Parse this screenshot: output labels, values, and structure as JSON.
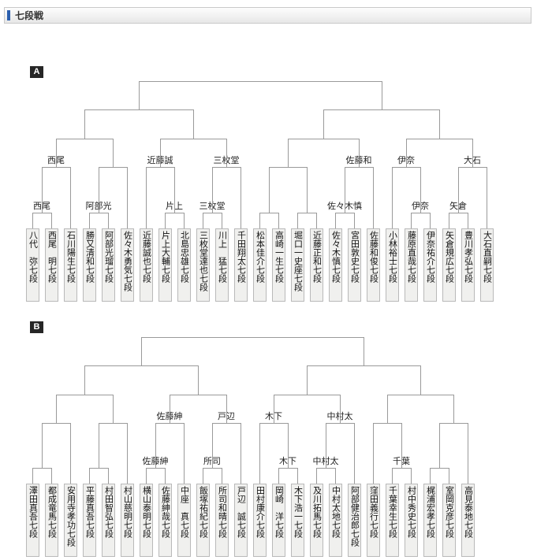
{
  "header": {
    "title": "七段戦"
  },
  "colors": {
    "accent": "#2b5fae",
    "line": "#9a9a9a",
    "box_bg": "#f0f0ee",
    "marker_bg": "#262626"
  },
  "sections": [
    {
      "marker": "A",
      "players": [
        "八代　弥七段",
        "西尾　明七段",
        "石川陽生七段",
        "勝又清和七段",
        "阿部光瑠七段",
        "佐々木勇気七段",
        "近藤誠也七段",
        "片上大輔七段",
        "北島忠雄七段",
        "三枚堂達也七段",
        "川上　猛七段",
        "千田翔太七段",
        "松本佳介七段",
        "高崎一生七段",
        "堀口一史座七段",
        "近藤正和七段",
        "佐々木慎七段",
        "宮田敦史七段",
        "佐藤和俊七段",
        "小林裕士七段",
        "藤原直哉七段",
        "伊奈祐介七段",
        "矢倉規広七段",
        "豊川孝弘七段",
        "大石直嗣七段"
      ],
      "matches": [
        {
          "id": "a1",
          "level": 1,
          "left": "p0",
          "right": "p1",
          "label": "西尾"
        },
        {
          "id": "a2",
          "level": 2,
          "left": "a1",
          "right": "p2",
          "label": "西尾"
        },
        {
          "id": "a3",
          "level": 1,
          "left": "p3",
          "right": "p4",
          "label": "阿部光"
        },
        {
          "id": "a4",
          "level": 2,
          "left": "a3",
          "right": "p5",
          "label": ""
        },
        {
          "id": "a5",
          "level": 3,
          "left": "a2",
          "right": "a4",
          "label": ""
        },
        {
          "id": "a6",
          "level": 1,
          "left": "p7",
          "right": "p8",
          "label": "片上"
        },
        {
          "id": "a7",
          "level": 2,
          "left": "p6",
          "right": "a6",
          "label": "近藤誠"
        },
        {
          "id": "a8",
          "level": 1,
          "left": "p9",
          "right": "p10",
          "label": "三枚堂"
        },
        {
          "id": "a9",
          "level": 2,
          "left": "a8",
          "right": "p11",
          "label": "三枚堂"
        },
        {
          "id": "a10",
          "level": 3,
          "left": "a7",
          "right": "a9",
          "label": ""
        },
        {
          "id": "a11",
          "level": 4,
          "left": "a5",
          "right": "a10",
          "label": ""
        },
        {
          "id": "a12",
          "level": 1,
          "left": "p12",
          "right": "p13",
          "label": ""
        },
        {
          "id": "a13",
          "level": 1,
          "left": "p14",
          "right": "p15",
          "label": ""
        },
        {
          "id": "a14",
          "level": 2,
          "left": "a12",
          "right": "a13",
          "label": ""
        },
        {
          "id": "a15",
          "level": 1,
          "left": "p16",
          "right": "p17",
          "label": "佐々木慎"
        },
        {
          "id": "a16",
          "level": 2,
          "left": "a15",
          "right": "p18",
          "label": "佐藤和"
        },
        {
          "id": "a17",
          "level": 3,
          "left": "a14",
          "right": "a16",
          "label": ""
        },
        {
          "id": "a18",
          "level": 1,
          "left": "p20",
          "right": "p21",
          "label": "伊奈"
        },
        {
          "id": "a19",
          "level": 2,
          "left": "p19",
          "right": "a18",
          "label": "伊奈"
        },
        {
          "id": "a20",
          "level": 1,
          "left": "p22",
          "right": "p23",
          "label": "矢倉"
        },
        {
          "id": "a21",
          "level": 2,
          "left": "a20",
          "right": "p24",
          "label": "大石"
        },
        {
          "id": "a22",
          "level": 3,
          "left": "a19",
          "right": "a21",
          "label": ""
        },
        {
          "id": "a23",
          "level": 4,
          "left": "a17",
          "right": "a22",
          "label": ""
        },
        {
          "id": "a24",
          "level": 5,
          "left": "a11",
          "right": "a23",
          "label": ""
        }
      ]
    },
    {
      "marker": "B",
      "players": [
        "澤田真吾七段",
        "都成竜馬七段",
        "安用寺孝功七段",
        "平藤真吾七段",
        "村田智弘七段",
        "村山慈明七段",
        "横山泰明七段",
        "佐藤紳哉七段",
        "中座　真七段",
        "飯塚祐紀七段",
        "所司和晴七段",
        "戸辺　誠七段",
        "田村康介七段",
        "岡崎　洋七段",
        "木下浩一七段",
        "及川拓馬七段",
        "中村太地七段",
        "阿部健治郎七段",
        "窪田義行七段",
        "千葉幸生七段",
        "村中秀史七段",
        "梶浦宏孝七段",
        "室岡克彦七段",
        "高見泰地七段"
      ],
      "matches": [
        {
          "id": "b1",
          "level": 1,
          "left": "p0",
          "right": "p1",
          "label": ""
        },
        {
          "id": "b2",
          "level": 2,
          "left": "b1",
          "right": "p2",
          "label": ""
        },
        {
          "id": "b3",
          "level": 1,
          "left": "p3",
          "right": "p4",
          "label": ""
        },
        {
          "id": "b4",
          "level": 2,
          "left": "b3",
          "right": "p5",
          "label": ""
        },
        {
          "id": "b5",
          "level": 3,
          "left": "b2",
          "right": "b4",
          "label": ""
        },
        {
          "id": "b6",
          "level": 1,
          "left": "p6",
          "right": "p7",
          "label": "佐藤紳"
        },
        {
          "id": "b7",
          "level": 2,
          "left": "b6",
          "right": "p8",
          "label": "佐藤紳"
        },
        {
          "id": "b8",
          "level": 1,
          "left": "p9",
          "right": "p10",
          "label": "所司"
        },
        {
          "id": "b9",
          "level": 2,
          "left": "b8",
          "right": "p11",
          "label": "戸辺"
        },
        {
          "id": "b10",
          "level": 3,
          "left": "b7",
          "right": "b9",
          "label": ""
        },
        {
          "id": "b11",
          "level": 4,
          "left": "b5",
          "right": "b10",
          "label": ""
        },
        {
          "id": "b12",
          "level": 1,
          "left": "p13",
          "right": "p14",
          "label": "木下"
        },
        {
          "id": "b13",
          "level": 2,
          "left": "p12",
          "right": "b12",
          "label": "木下"
        },
        {
          "id": "b14",
          "level": 1,
          "left": "p15",
          "right": "p16",
          "label": "中村太"
        },
        {
          "id": "b15",
          "level": 2,
          "left": "b14",
          "right": "p17",
          "label": "中村太"
        },
        {
          "id": "b16",
          "level": 3,
          "left": "b13",
          "right": "b15",
          "label": ""
        },
        {
          "id": "b17",
          "level": 1,
          "left": "p19",
          "right": "p20",
          "label": "千葉"
        },
        {
          "id": "b18",
          "level": 2,
          "left": "p18",
          "right": "b17",
          "label": ""
        },
        {
          "id": "b19",
          "level": 1,
          "left": "p21",
          "right": "p22",
          "label": ""
        },
        {
          "id": "b20",
          "level": 2,
          "left": "b19",
          "right": "p23",
          "label": ""
        },
        {
          "id": "b21",
          "level": 3,
          "left": "b18",
          "right": "b20",
          "label": ""
        },
        {
          "id": "b22",
          "level": 4,
          "left": "b16",
          "right": "b21",
          "label": ""
        },
        {
          "id": "b23",
          "level": 5,
          "left": "b11",
          "right": "b22",
          "label": ""
        }
      ]
    }
  ]
}
